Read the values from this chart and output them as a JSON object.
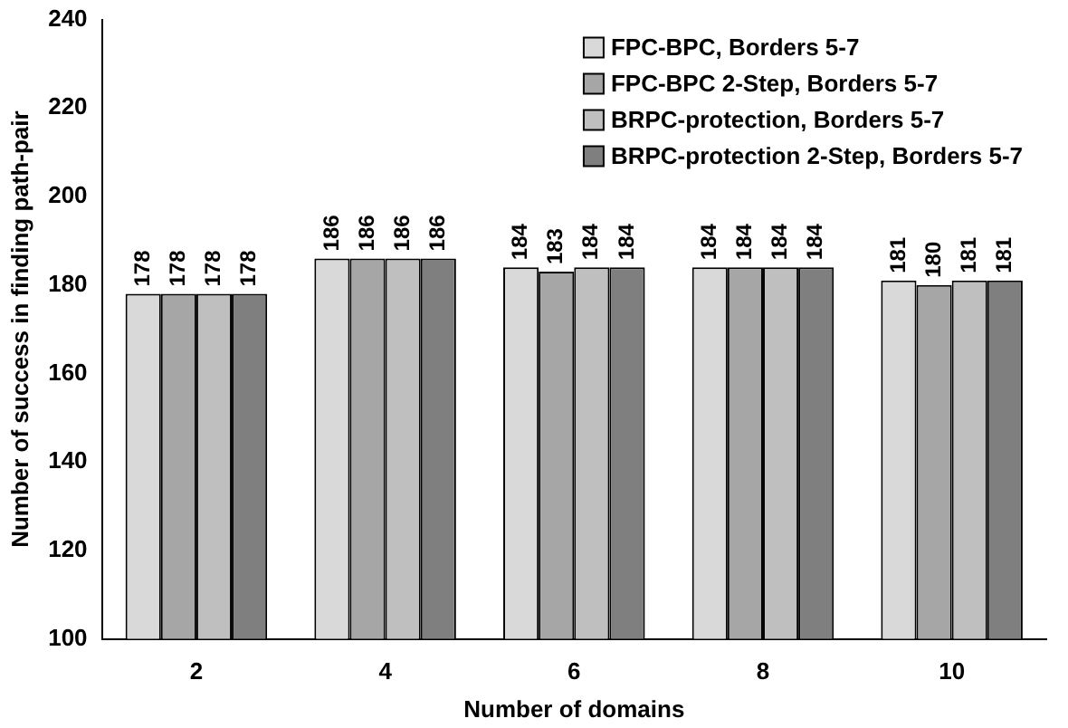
{
  "chart_data": {
    "type": "bar",
    "xlabel": "Number of domains",
    "ylabel": "Number of success in finding path-pair",
    "categories": [
      "2",
      "4",
      "6",
      "8",
      "10"
    ],
    "series": [
      {
        "name": "FPC-BPC, Borders 5-7",
        "color": "#d9d9d9",
        "values": [
          178,
          186,
          184,
          184,
          181
        ]
      },
      {
        "name": "FPC-BPC 2-Step, Borders 5-7",
        "color": "#a6a6a6",
        "values": [
          178,
          186,
          183,
          184,
          180
        ]
      },
      {
        "name": "BRPC-protection, Borders 5-7",
        "color": "#bfbfbf",
        "values": [
          178,
          186,
          184,
          184,
          181
        ]
      },
      {
        "name": "BRPC-protection 2-Step, Borders 5-7",
        "color": "#7f7f7f",
        "values": [
          178,
          186,
          184,
          184,
          181
        ]
      }
    ],
    "ylim": [
      100,
      240
    ],
    "yticks": [
      100,
      120,
      140,
      160,
      180,
      200,
      220,
      240
    ],
    "grid": false,
    "legend": "top right",
    "data_labels": true
  }
}
